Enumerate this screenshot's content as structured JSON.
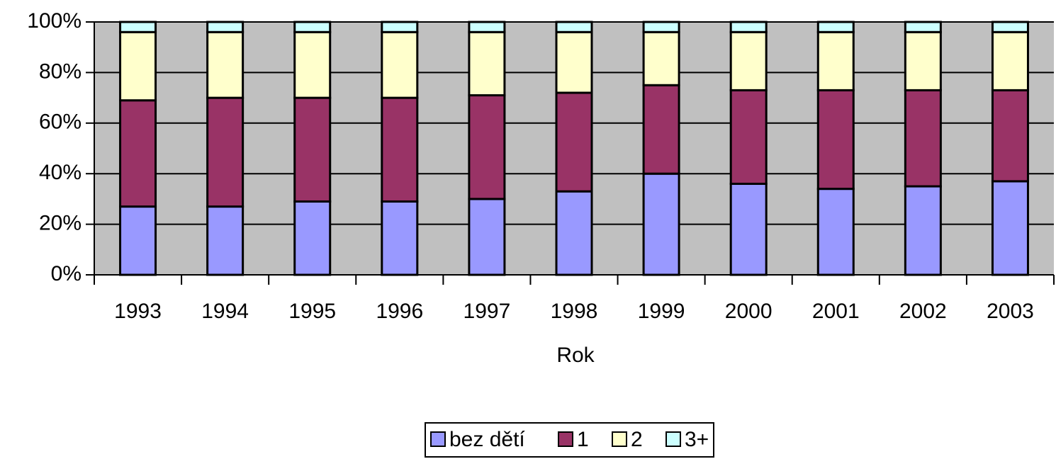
{
  "chart_data": {
    "type": "stacked_bar_100",
    "categories": [
      "1993",
      "1994",
      "1995",
      "1996",
      "1997",
      "1998",
      "1999",
      "2000",
      "2001",
      "2002",
      "2003"
    ],
    "series": [
      {
        "name": "bez dětí",
        "color": "#9999ff",
        "values": [
          27,
          27,
          29,
          29,
          30,
          33,
          40,
          36,
          34,
          35,
          37
        ]
      },
      {
        "name": "1",
        "color": "#993366",
        "values": [
          42,
          43,
          41,
          41,
          41,
          39,
          35,
          37,
          39,
          38,
          36
        ]
      },
      {
        "name": "2",
        "color": "#ffffcc",
        "values": [
          27,
          26,
          26,
          26,
          25,
          24,
          21,
          23,
          23,
          23,
          23
        ]
      },
      {
        "name": "3+",
        "color": "#ccffff",
        "values": [
          4,
          4,
          4,
          4,
          4,
          4,
          4,
          4,
          4,
          4,
          4
        ]
      }
    ],
    "x_label": "Rok",
    "ylim": [
      0,
      100
    ],
    "yticks": [
      {
        "value": 0,
        "label": "0%"
      },
      {
        "value": 20,
        "label": "20%"
      },
      {
        "value": 40,
        "label": "40%"
      },
      {
        "value": 60,
        "label": "60%"
      },
      {
        "value": 80,
        "label": "80%"
      },
      {
        "value": 100,
        "label": "100%"
      }
    ],
    "grid": true,
    "legend": "bottom",
    "plot_background": "#c0c0c0"
  }
}
